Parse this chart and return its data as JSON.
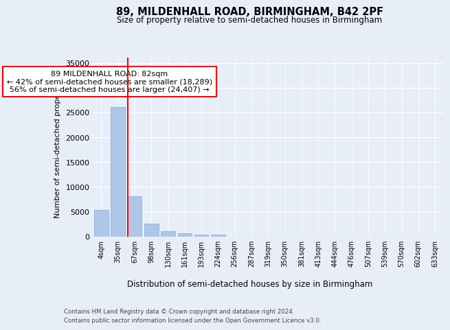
{
  "title1": "89, MILDENHALL ROAD, BIRMINGHAM, B42 2PF",
  "title2": "Size of property relative to semi-detached houses in Birmingham",
  "xlabel": "Distribution of semi-detached houses by size in Birmingham",
  "ylabel": "Number of semi-detached properties",
  "bar_values": [
    5300,
    26100,
    8100,
    2500,
    1050,
    600,
    350,
    300,
    0,
    0,
    0,
    0,
    0,
    0,
    0,
    0,
    0,
    0,
    0,
    0,
    0
  ],
  "bin_labels": [
    "4sqm",
    "35sqm",
    "67sqm",
    "98sqm",
    "130sqm",
    "161sqm",
    "193sqm",
    "224sqm",
    "256sqm",
    "287sqm",
    "319sqm",
    "350sqm",
    "381sqm",
    "413sqm",
    "444sqm",
    "476sqm",
    "507sqm",
    "539sqm",
    "570sqm",
    "602sqm",
    "633sqm"
  ],
  "bar_color": "#aec6e8",
  "bar_edge_color": "#7aaad0",
  "vline_color": "red",
  "vline_x_index": 2,
  "annotation_title": "89 MILDENHALL ROAD: 82sqm",
  "annotation_line1": "← 42% of semi-detached houses are smaller (18,289)",
  "annotation_line2": "56% of semi-detached houses are larger (24,407) →",
  "annotation_box_color": "white",
  "annotation_box_edge": "red",
  "ylim": [
    0,
    36000
  ],
  "yticks": [
    0,
    5000,
    10000,
    15000,
    20000,
    25000,
    30000,
    35000
  ],
  "footer1": "Contains HM Land Registry data © Crown copyright and database right 2024.",
  "footer2": "Contains public sector information licensed under the Open Government Licence v3.0.",
  "bg_color": "#e8eef8",
  "plot_bg_color": "#e8eef8"
}
